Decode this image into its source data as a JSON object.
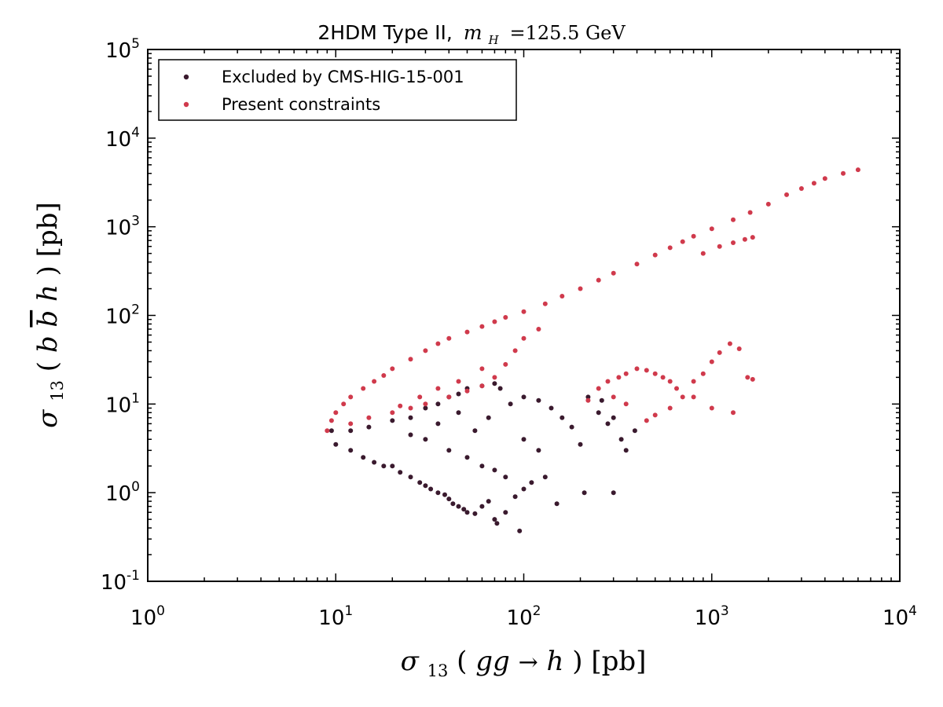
{
  "chart_data": {
    "type": "scatter",
    "title": {
      "prefix": "2HDM Type II,",
      "math_symbol": "m",
      "math_subscript": "H",
      "suffix": "=125.5 GeV"
    },
    "xlabel": {
      "symbol": "σ",
      "subscript": "13",
      "open": "(",
      "body": "gg",
      "arrow": "→",
      "tail": "h",
      "close": ")",
      "unit": "[pb]"
    },
    "ylabel": {
      "symbol": "σ",
      "subscript": "13",
      "open": "(",
      "b1": "b",
      "b2": "b",
      "tail": "h",
      "close": ")",
      "unit": "[pb]"
    },
    "x_scale": "log",
    "y_scale": "log",
    "xlim": [
      1,
      10000
    ],
    "ylim": [
      0.1,
      100000
    ],
    "x_ticks": [
      {
        "base": "10",
        "exp": "0",
        "value": 1
      },
      {
        "base": "10",
        "exp": "1",
        "value": 10
      },
      {
        "base": "10",
        "exp": "2",
        "value": 100
      },
      {
        "base": "10",
        "exp": "3",
        "value": 1000
      },
      {
        "base": "10",
        "exp": "4",
        "value": 10000
      }
    ],
    "y_ticks": [
      {
        "base": "10",
        "exp": "-1",
        "value": 0.1
      },
      {
        "base": "10",
        "exp": "0",
        "value": 1
      },
      {
        "base": "10",
        "exp": "1",
        "value": 10
      },
      {
        "base": "10",
        "exp": "2",
        "value": 100
      },
      {
        "base": "10",
        "exp": "3",
        "value": 1000
      },
      {
        "base": "10",
        "exp": "4",
        "value": 10000
      },
      {
        "base": "10",
        "exp": "5",
        "value": 100000
      }
    ],
    "grid": false,
    "legend_position": "top-left",
    "series": [
      {
        "name": "Excluded by CMS-HIG-15-001",
        "color": "#3a1a2e",
        "points": [
          [
            9.5,
            5.0
          ],
          [
            10,
            3.5
          ],
          [
            12,
            3.0
          ],
          [
            14,
            2.5
          ],
          [
            16,
            2.2
          ],
          [
            18,
            2.0
          ],
          [
            20,
            2.0
          ],
          [
            22,
            1.7
          ],
          [
            25,
            1.5
          ],
          [
            28,
            1.3
          ],
          [
            30,
            1.2
          ],
          [
            32,
            1.1
          ],
          [
            35,
            1.0
          ],
          [
            38,
            0.95
          ],
          [
            40,
            0.85
          ],
          [
            42,
            0.75
          ],
          [
            45,
            0.7
          ],
          [
            48,
            0.65
          ],
          [
            50,
            0.6
          ],
          [
            55,
            0.58
          ],
          [
            60,
            0.7
          ],
          [
            65,
            0.8
          ],
          [
            70,
            0.5
          ],
          [
            72,
            0.45
          ],
          [
            80,
            0.6
          ],
          [
            95,
            0.37
          ],
          [
            90,
            0.9
          ],
          [
            100,
            1.1
          ],
          [
            110,
            1.3
          ],
          [
            130,
            1.5
          ],
          [
            150,
            0.75
          ],
          [
            210,
            1.0
          ],
          [
            300,
            1.0
          ],
          [
            350,
            3.0
          ],
          [
            390,
            5.0
          ],
          [
            200,
            3.5
          ],
          [
            180,
            5.5
          ],
          [
            160,
            7.0
          ],
          [
            140,
            9.0
          ],
          [
            120,
            11.0
          ],
          [
            100,
            12.0
          ],
          [
            85,
            10.0
          ],
          [
            75,
            15.0
          ],
          [
            70,
            17.0
          ],
          [
            60,
            16.0
          ],
          [
            50,
            15.0
          ],
          [
            45,
            13.0
          ],
          [
            40,
            12.0
          ],
          [
            35,
            10.0
          ],
          [
            30,
            9.0
          ],
          [
            25,
            7.0
          ],
          [
            20,
            6.5
          ],
          [
            15,
            5.5
          ],
          [
            12,
            5.0
          ],
          [
            30,
            4.0
          ],
          [
            40,
            3.0
          ],
          [
            50,
            2.5
          ],
          [
            60,
            2.0
          ],
          [
            70,
            1.8
          ],
          [
            80,
            1.5
          ],
          [
            55,
            5.0
          ],
          [
            65,
            7.0
          ],
          [
            45,
            8.0
          ],
          [
            35,
            6.0
          ],
          [
            25,
            4.5
          ],
          [
            100,
            4.0
          ],
          [
            120,
            3.0
          ],
          [
            250,
            8.0
          ],
          [
            300,
            7.0
          ],
          [
            220,
            12.0
          ],
          [
            260,
            11.0
          ],
          [
            330,
            4.0
          ],
          [
            280,
            6.0
          ]
        ]
      },
      {
        "name": "Present constraints",
        "color": "#d03a4c",
        "points": [
          [
            9.0,
            5.0
          ],
          [
            9.5,
            6.5
          ],
          [
            10,
            8.0
          ],
          [
            11,
            10.0
          ],
          [
            12,
            12.0
          ],
          [
            14,
            15.0
          ],
          [
            16,
            18.0
          ],
          [
            18,
            21.0
          ],
          [
            20,
            25.0
          ],
          [
            25,
            32.0
          ],
          [
            30,
            40.0
          ],
          [
            35,
            48.0
          ],
          [
            40,
            55.0
          ],
          [
            50,
            65.0
          ],
          [
            60,
            75.0
          ],
          [
            70,
            85.0
          ],
          [
            80,
            95.0
          ],
          [
            100,
            110.0
          ],
          [
            130,
            135.0
          ],
          [
            160,
            165.0
          ],
          [
            200,
            200.0
          ],
          [
            250,
            250.0
          ],
          [
            300,
            300.0
          ],
          [
            400,
            380.0
          ],
          [
            500,
            480.0
          ],
          [
            600,
            580.0
          ],
          [
            700,
            680.0
          ],
          [
            800,
            780.0
          ],
          [
            1000,
            950.0
          ],
          [
            1300,
            1200.0
          ],
          [
            1600,
            1450.0
          ],
          [
            2000,
            1800.0
          ],
          [
            2500,
            2300.0
          ],
          [
            3000,
            2700.0
          ],
          [
            3500,
            3100.0
          ],
          [
            4000,
            3500.0
          ],
          [
            5000,
            4000.0
          ],
          [
            6000,
            4400.0
          ],
          [
            900,
            500.0
          ],
          [
            1100,
            600.0
          ],
          [
            1300,
            660.0
          ],
          [
            1500,
            720.0
          ],
          [
            1650,
            760.0
          ],
          [
            12,
            6.0
          ],
          [
            15,
            7.0
          ],
          [
            20,
            8.0
          ],
          [
            25,
            9.0
          ],
          [
            30,
            10.0
          ],
          [
            40,
            12.0
          ],
          [
            50,
            14.0
          ],
          [
            60,
            16.0
          ],
          [
            70,
            20.0
          ],
          [
            80,
            28.0
          ],
          [
            90,
            40.0
          ],
          [
            100,
            55.0
          ],
          [
            120,
            70.0
          ],
          [
            60,
            25.0
          ],
          [
            45,
            18.0
          ],
          [
            35,
            15.0
          ],
          [
            28,
            12.0
          ],
          [
            22,
            9.5
          ],
          [
            220,
            11.0
          ],
          [
            250,
            15.0
          ],
          [
            280,
            18.0
          ],
          [
            320,
            20.0
          ],
          [
            350,
            22.0
          ],
          [
            400,
            25.0
          ],
          [
            450,
            24.0
          ],
          [
            500,
            22.0
          ],
          [
            550,
            20.0
          ],
          [
            600,
            18.0
          ],
          [
            650,
            15.0
          ],
          [
            700,
            12.0
          ],
          [
            800,
            18.0
          ],
          [
            900,
            22.0
          ],
          [
            1000,
            30.0
          ],
          [
            1100,
            38.0
          ],
          [
            1250,
            48.0
          ],
          [
            1400,
            42.0
          ],
          [
            1550,
            20.0
          ],
          [
            1650,
            19.0
          ],
          [
            1300,
            8.0
          ],
          [
            1000,
            9.0
          ],
          [
            800,
            12.0
          ],
          [
            600,
            9.0
          ],
          [
            500,
            7.5
          ],
          [
            450,
            6.5
          ],
          [
            350,
            10.0
          ],
          [
            300,
            12.0
          ]
        ]
      }
    ]
  }
}
